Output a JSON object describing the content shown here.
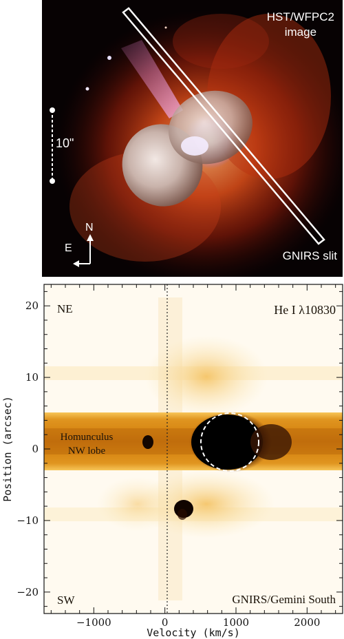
{
  "top_image": {
    "instrument_label": "HST/WFPC2",
    "image_label": "image",
    "scale_label": "10\"",
    "slit_label": "GNIRS slit",
    "compass_north": "N",
    "compass_east": "E"
  },
  "spectrum": {
    "line_label": "He I  λ10830",
    "instrument_label": "GNIRS/Gemini South",
    "ne_label": "NE",
    "sw_label": "SW",
    "feature_label_line1": "Homunculus",
    "feature_label_line2": "NW lobe",
    "xlabel": "Velocity (km/s)",
    "ylabel": "Position (arcsec)",
    "xlim": [
      -1700,
      2500
    ],
    "ylim": [
      -23,
      23
    ],
    "xticks": [
      -1000,
      0,
      1000,
      2000
    ],
    "yticks": [
      -20,
      -10,
      0,
      10,
      20
    ],
    "colormap": [
      "#ffffff",
      "#fde9b4",
      "#f6c25a",
      "#d98a1c",
      "#6a2c06",
      "#000000"
    ]
  }
}
